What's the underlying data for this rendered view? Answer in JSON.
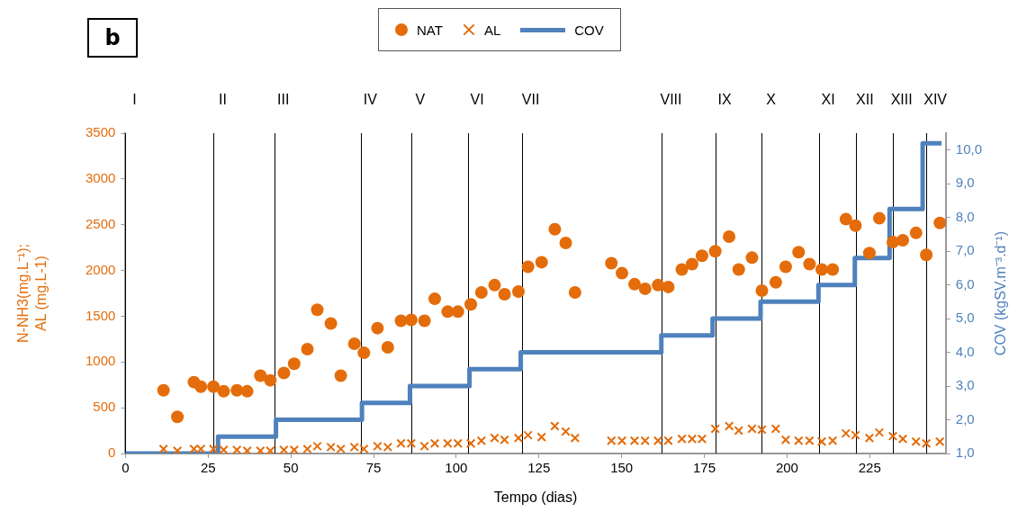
{
  "chart_data": {
    "type": "scatter",
    "xlabel": "Tempo (dias)",
    "ylabel": "N-NH3(mg.L⁻¹); AL (mg.L-1)",
    "y2label": "COV (kgSV.m⁻³.d⁻¹)",
    "annotations": [
      "b"
    ],
    "legend": "top",
    "xlim": [
      0,
      248
    ],
    "xticks": [
      0,
      25,
      50,
      75,
      100,
      125,
      150,
      175,
      200,
      225
    ],
    "ylim": [
      0,
      3500
    ],
    "yticks": [
      0,
      500,
      1000,
      1500,
      2000,
      2500,
      3000,
      3500
    ],
    "y2lim": [
      1,
      10.5
    ],
    "y2ticks": [
      {
        "value": 1,
        "label": "1,0"
      },
      {
        "value": 2,
        "label": "2,0"
      },
      {
        "value": 3,
        "label": "3,0"
      },
      {
        "value": 4,
        "label": "4,0"
      },
      {
        "value": 5,
        "label": "5,0"
      },
      {
        "value": 6,
        "label": "6,0"
      },
      {
        "value": 7,
        "label": "7,0"
      },
      {
        "value": 8,
        "label": "8,0"
      },
      {
        "value": 9,
        "label": "9,0"
      },
      {
        "value": 10,
        "label": "10,0"
      }
    ],
    "ref_lines": [
      {
        "axis": "x",
        "value": 0,
        "label": "I",
        "color": "#000000"
      },
      {
        "axis": "x",
        "value": 26.7,
        "label": "II",
        "color": "#000000"
      },
      {
        "axis": "x",
        "value": 45,
        "label": "III",
        "color": "#000000"
      },
      {
        "axis": "x",
        "value": 71.3,
        "label": "IV",
        "color": "#000000"
      },
      {
        "axis": "x",
        "value": 86.4,
        "label": "V",
        "color": "#000000"
      },
      {
        "axis": "x",
        "value": 103.6,
        "label": "VI",
        "color": "#000000"
      },
      {
        "axis": "x",
        "value": 119.8,
        "label": "VII",
        "color": "#000000"
      },
      {
        "axis": "x",
        "value": 162.2,
        "label": "VIII",
        "color": "#000000"
      },
      {
        "axis": "x",
        "value": 178.4,
        "label": "IX",
        "color": "#000000"
      },
      {
        "axis": "x",
        "value": 192.4,
        "label": "X",
        "color": "#000000"
      },
      {
        "axis": "x",
        "value": 209.7,
        "label": "XI",
        "color": "#000000"
      },
      {
        "axis": "x",
        "value": 220.8,
        "label": "XII",
        "color": "#000000"
      },
      {
        "axis": "x",
        "value": 231.9,
        "label": "XIII",
        "color": "#000000"
      },
      {
        "axis": "x",
        "value": 242.1,
        "label": "XIV",
        "color": "#000000"
      }
    ],
    "series": [
      {
        "name": "NAT",
        "type": "scatter",
        "marker": "circle",
        "color": "#e46c0a",
        "x": [
          11.5,
          15.7,
          20.7,
          22.8,
          26.6,
          29.7,
          33.7,
          36.8,
          40.8,
          43.8,
          47.9,
          51.0,
          55.0,
          58.0,
          62.1,
          65.1,
          69.2,
          72.1,
          76.2,
          79.3,
          83.3,
          86.4,
          90.4,
          93.5,
          97.4,
          100.5,
          104.4,
          107.6,
          111.6,
          114.6,
          118.8,
          121.7,
          125.8,
          129.8,
          133.1,
          135.9,
          146.9,
          150.1,
          153.9,
          157.1,
          161.0,
          164.1,
          168.2,
          171.3,
          174.3,
          178.3,
          182.5,
          185.4,
          189.4,
          192.4,
          196.6,
          199.6,
          203.5,
          206.8,
          210.5,
          213.8,
          217.8,
          220.7,
          224.9,
          227.9,
          232.0,
          235.0,
          239.0,
          242.1,
          246.2
        ],
        "values": [
          690,
          400,
          780,
          730,
          730,
          680,
          690,
          680,
          850,
          800,
          880,
          980,
          1140,
          1570,
          1420,
          850,
          1200,
          1100,
          1370,
          1160,
          1450,
          1460,
          1450,
          1690,
          1550,
          1550,
          1630,
          1760,
          1840,
          1740,
          1770,
          2040,
          2090,
          2450,
          2300,
          1760,
          2080,
          1970,
          1850,
          1800,
          1840,
          1820,
          2010,
          2070,
          2160,
          2210,
          2370,
          2010,
          2140,
          1780,
          1870,
          2040,
          2200,
          2070,
          2010,
          2010,
          2560,
          2490,
          2190,
          2570,
          2310,
          2330,
          2410,
          2170,
          2520
        ]
      },
      {
        "name": "AL",
        "type": "scatter",
        "marker": "cross",
        "color": "#e46c0a",
        "x": [
          11.5,
          15.7,
          20.7,
          22.8,
          26.6,
          29.7,
          33.7,
          36.8,
          40.8,
          43.8,
          47.9,
          51.0,
          55.0,
          58.0,
          62.1,
          65.1,
          69.2,
          72.1,
          76.2,
          79.3,
          83.3,
          86.4,
          90.4,
          93.5,
          97.4,
          100.5,
          104.4,
          107.6,
          111.6,
          114.6,
          118.8,
          121.7,
          125.8,
          129.8,
          133.1,
          135.9,
          146.9,
          150.1,
          153.9,
          157.1,
          161.0,
          164.1,
          168.2,
          171.3,
          174.3,
          178.3,
          182.5,
          185.4,
          189.4,
          192.4,
          196.6,
          199.6,
          203.5,
          206.8,
          210.5,
          213.8,
          217.8,
          220.7,
          224.9,
          227.9,
          232.0,
          235.0,
          239.0,
          242.1,
          246.2
        ],
        "values": [
          50,
          30,
          50,
          50,
          50,
          40,
          40,
          30,
          30,
          30,
          40,
          40,
          50,
          80,
          70,
          50,
          70,
          50,
          80,
          70,
          110,
          110,
          80,
          110,
          110,
          110,
          110,
          140,
          170,
          150,
          170,
          200,
          180,
          300,
          240,
          170,
          140,
          140,
          140,
          140,
          140,
          140,
          160,
          160,
          160,
          270,
          300,
          250,
          270,
          260,
          270,
          150,
          140,
          140,
          130,
          140,
          220,
          200,
          170,
          230,
          190,
          160,
          130,
          110,
          130
        ]
      },
      {
        "name": "COV",
        "type": "step",
        "axis": "y2",
        "marker": "none",
        "color": "#4f81bd",
        "x": [
          0,
          28,
          45.5,
          71.5,
          86,
          104,
          119.5,
          162,
          177.5,
          192,
          209.5,
          220.5,
          231,
          241,
          246.7
        ],
        "values": [
          1,
          1.5,
          2,
          2.5,
          3,
          3.5,
          4,
          4.5,
          5,
          5.5,
          6,
          6.8,
          8.25,
          10.2,
          10.2
        ]
      }
    ]
  }
}
